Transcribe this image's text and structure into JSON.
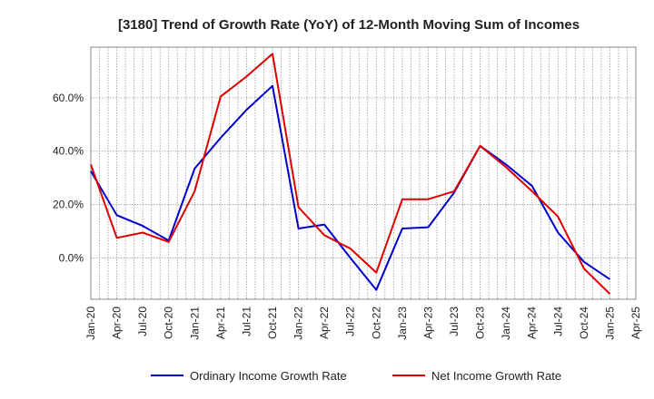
{
  "chart_data": {
    "type": "line",
    "title": "[3180]  Trend of Growth Rate (YoY) of 12-Month Moving Sum of Incomes",
    "xlabel": "",
    "ylabel": "",
    "x": [
      "Jan-20",
      "Apr-20",
      "Jul-20",
      "Oct-20",
      "Jan-21",
      "Apr-21",
      "Jul-21",
      "Oct-21",
      "Jan-22",
      "Apr-22",
      "Jul-22",
      "Oct-22",
      "Jan-23",
      "Apr-23",
      "Jul-23",
      "Oct-23",
      "Jan-24",
      "Apr-24",
      "Jul-24",
      "Oct-24",
      "Jan-25"
    ],
    "x_ticks": [
      "Jan-20",
      "Apr-20",
      "Jul-20",
      "Oct-20",
      "Jan-21",
      "Apr-21",
      "Jul-21",
      "Oct-21",
      "Jan-22",
      "Apr-22",
      "Jul-22",
      "Oct-22",
      "Jan-23",
      "Apr-23",
      "Jul-23",
      "Oct-23",
      "Jan-24",
      "Apr-24",
      "Jul-24",
      "Oct-24",
      "Jan-25",
      "Apr-25"
    ],
    "y_ticks": [
      0,
      20,
      40,
      60
    ],
    "y_tick_labels": [
      "0.0%",
      "20.0%",
      "40.0%",
      "60.0%"
    ],
    "ylim": [
      -15.5,
      79
    ],
    "grid": true,
    "legend_position": "bottom",
    "series": [
      {
        "name": "Ordinary Income Growth Rate",
        "color": "#0000cc",
        "values": [
          32.5,
          16.0,
          12.0,
          6.5,
          33.5,
          45.0,
          55.5,
          64.5,
          11.0,
          12.5,
          0.0,
          -12.0,
          11.0,
          11.5,
          24.5,
          42.0,
          35.0,
          27.0,
          9.5,
          -1.5,
          -8.0
        ]
      },
      {
        "name": "Net Income Growth Rate",
        "color": "#dd0000",
        "values": [
          35.0,
          7.5,
          9.5,
          6.0,
          25.0,
          60.5,
          68.0,
          76.5,
          19.0,
          8.5,
          3.5,
          -5.5,
          22.0,
          22.0,
          25.0,
          42.0,
          34.0,
          25.0,
          15.5,
          -4.0,
          -13.5
        ]
      }
    ]
  }
}
